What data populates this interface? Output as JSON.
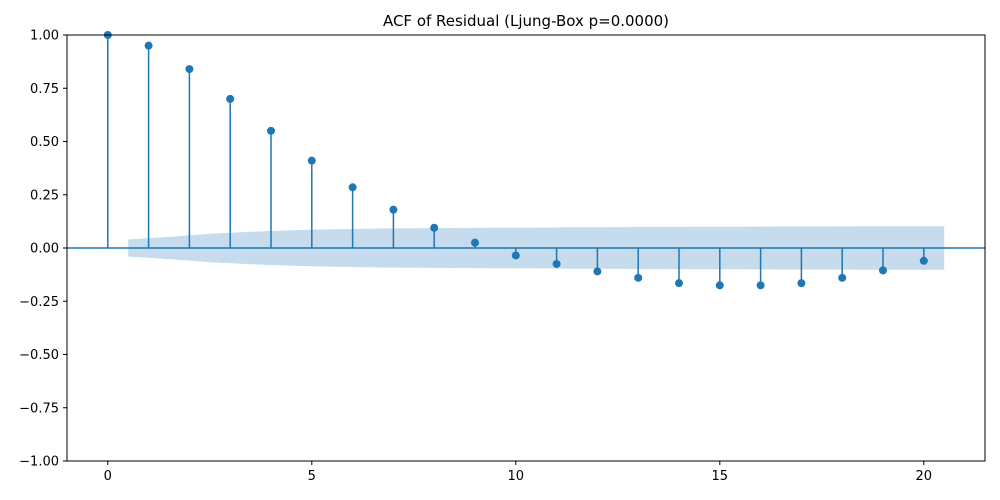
{
  "colors": {
    "stem": "#1f77b4",
    "marker": "#1f77b4",
    "confidence_band": "#c6dbec",
    "axis": "#000000",
    "background": "#ffffff"
  },
  "chart_data": {
    "type": "scatter",
    "subtype": "stem",
    "title": "ACF of Residual (Ljung-Box p=0.0000)",
    "xlabel": "",
    "ylabel": "",
    "xlim": [
      -1,
      21.5
    ],
    "ylim": [
      -1.0,
      1.0
    ],
    "grid": false,
    "legend": "none",
    "x_ticks": [
      0,
      5,
      10,
      15,
      20
    ],
    "x_tick_labels": [
      "0",
      "5",
      "10",
      "15",
      "20"
    ],
    "y_ticks": [
      1.0,
      0.75,
      0.5,
      0.25,
      0.0,
      -0.25,
      -0.5,
      -0.75,
      -1.0
    ],
    "y_tick_labels": [
      "1.00",
      "0.75",
      "0.50",
      "0.25",
      "0.00",
      "−0.25",
      "−0.50",
      "−0.75",
      "−1.00"
    ],
    "lags": [
      0,
      1,
      2,
      3,
      4,
      5,
      6,
      7,
      8,
      9,
      10,
      11,
      12,
      13,
      14,
      15,
      16,
      17,
      18,
      19,
      20
    ],
    "acf": [
      1.0,
      0.95,
      0.84,
      0.7,
      0.55,
      0.41,
      0.285,
      0.18,
      0.095,
      0.025,
      -0.035,
      -0.075,
      -0.11,
      -0.14,
      -0.165,
      -0.175,
      -0.175,
      -0.165,
      -0.14,
      -0.105,
      -0.06
    ],
    "confidence_band": {
      "x_range": [
        0.5,
        20.5
      ],
      "upper": [
        0.04,
        0.052,
        0.066,
        0.076,
        0.083,
        0.088,
        0.091,
        0.093,
        0.094,
        0.095,
        0.096,
        0.097,
        0.098,
        0.099,
        0.1,
        0.1,
        0.101,
        0.101,
        0.102,
        0.102,
        0.102
      ]
    },
    "zero_line": true
  }
}
